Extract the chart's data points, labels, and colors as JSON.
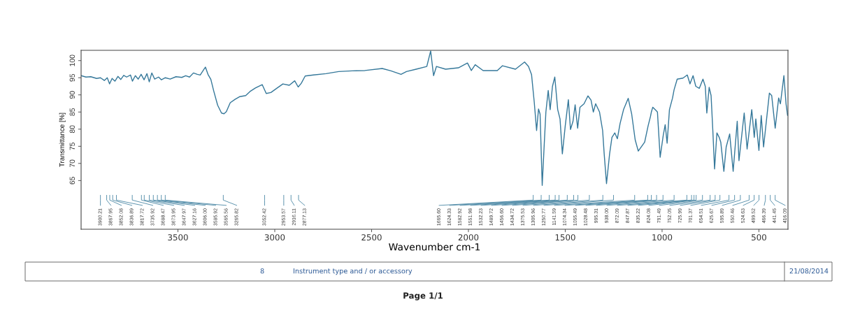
{
  "chart_data": {
    "type": "line",
    "xlabel": "Wavenumber cm-1",
    "ylabel": "Transmittance [%]",
    "xlim": [
      4000,
      350
    ],
    "xticks": [
      3500,
      3000,
      2500,
      2000,
      1500,
      1000,
      500
    ],
    "ylim": [
      50.8,
      103
    ],
    "yticks": [
      65,
      70,
      75,
      80,
      85,
      90,
      95,
      100
    ],
    "marker": "none",
    "line_style": "solid",
    "x": [
      4000,
      3975,
      3950,
      3920,
      3900,
      3880,
      3865,
      3853,
      3840,
      3825,
      3810,
      3795,
      3780,
      3765,
      3745,
      3735,
      3720,
      3705,
      3690,
      3675,
      3660,
      3648,
      3635,
      3620,
      3600,
      3585,
      3565,
      3540,
      3510,
      3480,
      3460,
      3440,
      3420,
      3400,
      3385,
      3365,
      3358,
      3345,
      3330,
      3315,
      3295,
      3275,
      3262,
      3250,
      3230,
      3205,
      3180,
      3150,
      3125,
      3100,
      3065,
      3044,
      3020,
      2990,
      2958,
      2925,
      2897,
      2879,
      2863,
      2843,
      2800,
      2735,
      2670,
      2600,
      2535,
      2445,
      2400,
      2348,
      2320,
      2270,
      2215,
      2195,
      2180,
      2165,
      2118,
      2052,
      2005,
      1985,
      1965,
      1924,
      1851,
      1824,
      1757,
      1710,
      1690,
      1674,
      1660,
      1648,
      1638,
      1630,
      1619,
      1608,
      1600,
      1588,
      1578,
      1566,
      1554,
      1539,
      1527,
      1515,
      1500,
      1484,
      1473,
      1460,
      1449,
      1436,
      1424,
      1403,
      1383,
      1367,
      1355,
      1343,
      1323,
      1307,
      1299,
      1287,
      1271,
      1259,
      1244,
      1231,
      1217,
      1199,
      1175,
      1157,
      1139,
      1123,
      1108,
      1090,
      1072,
      1060,
      1055.49,
      1048,
      1036,
      1024,
      1010,
      994,
      984,
      974,
      962,
      946,
      938,
      922,
      892,
      870,
      856,
      840,
      826,
      808,
      789,
      777,
      769,
      757,
      747,
      738,
      729,
      717,
      705,
      697,
      681,
      669,
      651,
      633,
      612,
      603,
      576,
      561,
      537,
      524,
      516,
      500,
      488,
      476,
      446,
      434,
      416,
      398,
      389,
      371,
      360,
      352,
      350
    ],
    "series": [
      {
        "color": "#35789a",
        "values": [
          95.6,
          95.2,
          95.3,
          94.8,
          95.0,
          94.2,
          95.0,
          93.2,
          94.8,
          94.0,
          95.4,
          94.5,
          95.7,
          95.2,
          95.8,
          94.0,
          95.6,
          94.6,
          96.0,
          94.4,
          96.2,
          93.8,
          96.4,
          94.6,
          95.2,
          94.4,
          95.0,
          94.6,
          95.3,
          95.1,
          95.6,
          95.2,
          96.4,
          96.0,
          95.8,
          97.5,
          98.1,
          96.0,
          94.5,
          91.1,
          87.0,
          84.7,
          84.5,
          85.1,
          87.7,
          88.7,
          89.5,
          89.8,
          91.1,
          92.0,
          93.0,
          90.4,
          90.7,
          91.9,
          93.2,
          92.8,
          94.1,
          92.3,
          93.4,
          95.5,
          95.8,
          96.2,
          96.8,
          97.0,
          97.1,
          97.7,
          97.0,
          96.0,
          96.8,
          97.5,
          98.3,
          102.8,
          95.6,
          98.3,
          97.5,
          97.9,
          99.3,
          97.1,
          98.8,
          97.1,
          97.1,
          98.5,
          97.5,
          99.6,
          98.3,
          95.9,
          87.8,
          79.6,
          85.9,
          84.4,
          63.6,
          76.2,
          85.0,
          91.3,
          85.7,
          92.5,
          95.2,
          85.7,
          83.0,
          72.8,
          81.0,
          88.6,
          79.9,
          82.3,
          87.1,
          80.3,
          86.4,
          87.4,
          89.7,
          88.5,
          85.0,
          87.4,
          85.0,
          79.6,
          72.8,
          64.1,
          72.8,
          77.6,
          78.9,
          77.2,
          81.6,
          85.7,
          89.0,
          84.4,
          76.9,
          73.6,
          74.8,
          76.2,
          81.0,
          83.7,
          85.0,
          86.4,
          85.7,
          85.0,
          71.8,
          78.2,
          81.3,
          75.9,
          85.7,
          89.1,
          91.5,
          94.6,
          94.9,
          95.8,
          93.2,
          95.6,
          92.5,
          91.9,
          94.6,
          92.5,
          84.7,
          92.2,
          89.8,
          79.6,
          68.4,
          78.9,
          77.6,
          76.2,
          67.7,
          74.8,
          78.6,
          67.7,
          82.3,
          70.8,
          84.7,
          74.2,
          85.7,
          77.6,
          83.0,
          73.8,
          84.0,
          74.8,
          90.5,
          89.8,
          80.3,
          89.1,
          87.4,
          95.6,
          87.4,
          84.0,
          84.5
        ]
      }
    ],
    "annotations": [
      {
        "text": "3900.21",
        "x": 3900.21
      },
      {
        "text": "3867.95",
        "x": 3867.95
      },
      {
        "text": "3852.08",
        "x": 3852.08
      },
      {
        "text": "3836.89",
        "x": 3836.89
      },
      {
        "text": "3817.72",
        "x": 3817.72
      },
      {
        "text": "3735.92",
        "x": 3735.92
      },
      {
        "text": "3688.47",
        "x": 3688.47
      },
      {
        "text": "3673.95",
        "x": 3673.95
      },
      {
        "text": "3647.97",
        "x": 3647.97
      },
      {
        "text": "3627.16",
        "x": 3627.16
      },
      {
        "text": "3606.00",
        "x": 3606.0
      },
      {
        "text": "3585.92",
        "x": 3585.92
      },
      {
        "text": "3565.56",
        "x": 3565.56
      },
      {
        "text": "3265.82",
        "x": 3265.82
      },
      {
        "text": "3052.42",
        "x": 3052.42
      },
      {
        "text": "2953.57",
        "x": 2953.57
      },
      {
        "text": "2916.11",
        "x": 2916.11
      },
      {
        "text": "2877.13",
        "x": 2877.13
      },
      {
        "text": "1665.60",
        "x": 1665.6
      },
      {
        "text": "1624.33",
        "x": 1624.33
      },
      {
        "text": "1582.92",
        "x": 1582.92
      },
      {
        "text": "1551.98",
        "x": 1551.98
      },
      {
        "text": "1532.23",
        "x": 1532.23
      },
      {
        "text": "1489.72",
        "x": 1489.72
      },
      {
        "text": "1456.60",
        "x": 1456.6
      },
      {
        "text": "1434.72",
        "x": 1434.72
      },
      {
        "text": "1375.53",
        "x": 1375.53
      },
      {
        "text": "1305.96",
        "x": 1305.96
      },
      {
        "text": "1250.77",
        "x": 1250.77
      },
      {
        "text": "1141.59",
        "x": 1141.59
      },
      {
        "text": "1074.34",
        "x": 1074.34
      },
      {
        "text": "1055.49",
        "x": 1055.49
      },
      {
        "text": "1028.48",
        "x": 1028.48
      },
      {
        "text": "995.31",
        "x": 995.31
      },
      {
        "text": "938.00",
        "x": 938.0
      },
      {
        "text": "872.09",
        "x": 872.09
      },
      {
        "text": "847.87",
        "x": 847.87
      },
      {
        "text": "835.22",
        "x": 835.22
      },
      {
        "text": "824.08",
        "x": 824.08
      },
      {
        "text": "791.49",
        "x": 791.49
      },
      {
        "text": "752.05",
        "x": 752.05
      },
      {
        "text": "725.99",
        "x": 725.99
      },
      {
        "text": "701.37",
        "x": 701.37
      },
      {
        "text": "654.51",
        "x": 654.51
      },
      {
        "text": "625.67",
        "x": 625.67
      },
      {
        "text": "595.89",
        "x": 595.89
      },
      {
        "text": "550.46",
        "x": 550.46
      },
      {
        "text": "524.63",
        "x": 524.63
      },
      {
        "text": "499.52",
        "x": 499.52
      },
      {
        "text": "466.39",
        "x": 466.39
      },
      {
        "text": "441.45",
        "x": 441.45
      },
      {
        "text": "416.09",
        "x": 416.09
      },
      "8",
      "Instrument type and / or accessory",
      "21/08/2014",
      "Page 1/1"
    ]
  }
}
